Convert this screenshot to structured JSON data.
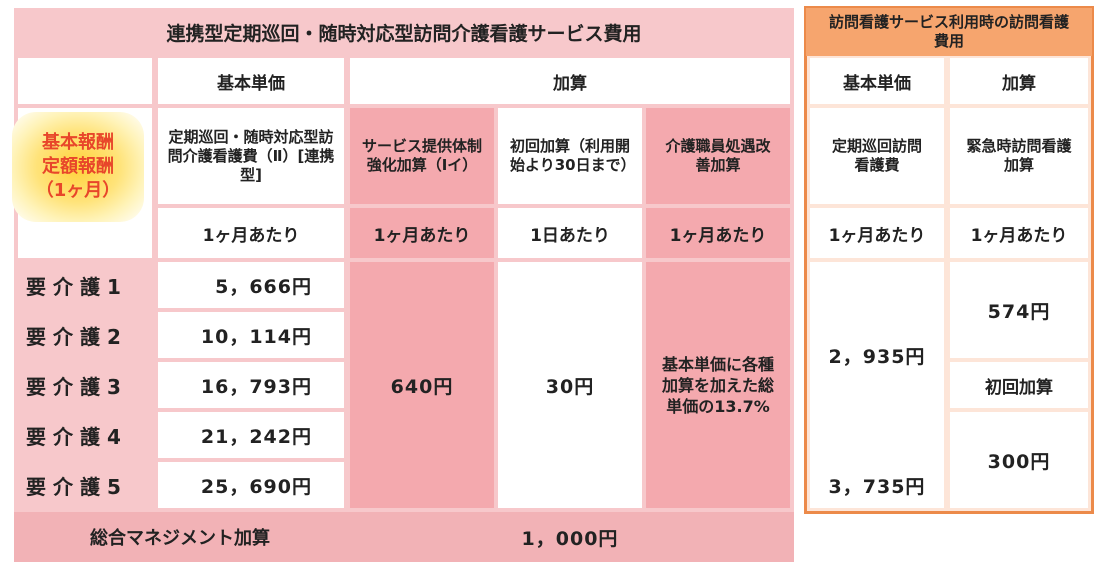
{
  "left_title": "連携型定期巡回・随時対応型訪問介護看護サービス費用",
  "col_headers": {
    "base_price": "基本単価",
    "addition": "加算"
  },
  "badge": {
    "line1": "基本報酬",
    "line2": "定額報酬",
    "line3": "（1ヶ月）"
  },
  "subheaders": {
    "base_fee": "定期巡回・随時対応型訪問介護看護費（Ⅱ）[連携型]",
    "service_system": "サービス提供体制強化加算（Ⅰイ）",
    "initial": "初回加算（利用開始より30日まで）",
    "care_staff": "介護職員処遇改善加算"
  },
  "units": {
    "per_month": "1ヶ月あたり",
    "per_day": "1日あたり"
  },
  "care_levels": [
    {
      "label": "要介護1",
      "price": "5，666円"
    },
    {
      "label": "要介護2",
      "price": "10，114円"
    },
    {
      "label": "要介護3",
      "price": "16，793円"
    },
    {
      "label": "要介護4",
      "price": "21，242円"
    },
    {
      "label": "要介護5",
      "price": "25，690円"
    }
  ],
  "service_system_value": "640円",
  "initial_value": "30円",
  "care_staff_value": "基本単価に各種加算を加えた総単価の13.7%",
  "management": {
    "label": "総合マネジメント加算",
    "value": "1，000円"
  },
  "right_title": "訪問看護サービス利用時の訪問看護費用",
  "right": {
    "base_label": "定期巡回訪問看護費",
    "emergency_label": "緊急時訪問看護加算",
    "base_value_1": "2，935円",
    "base_value_2": "3，735円",
    "emergency_value": "574円",
    "initial_label": "初回加算",
    "initial_value": "300円"
  }
}
